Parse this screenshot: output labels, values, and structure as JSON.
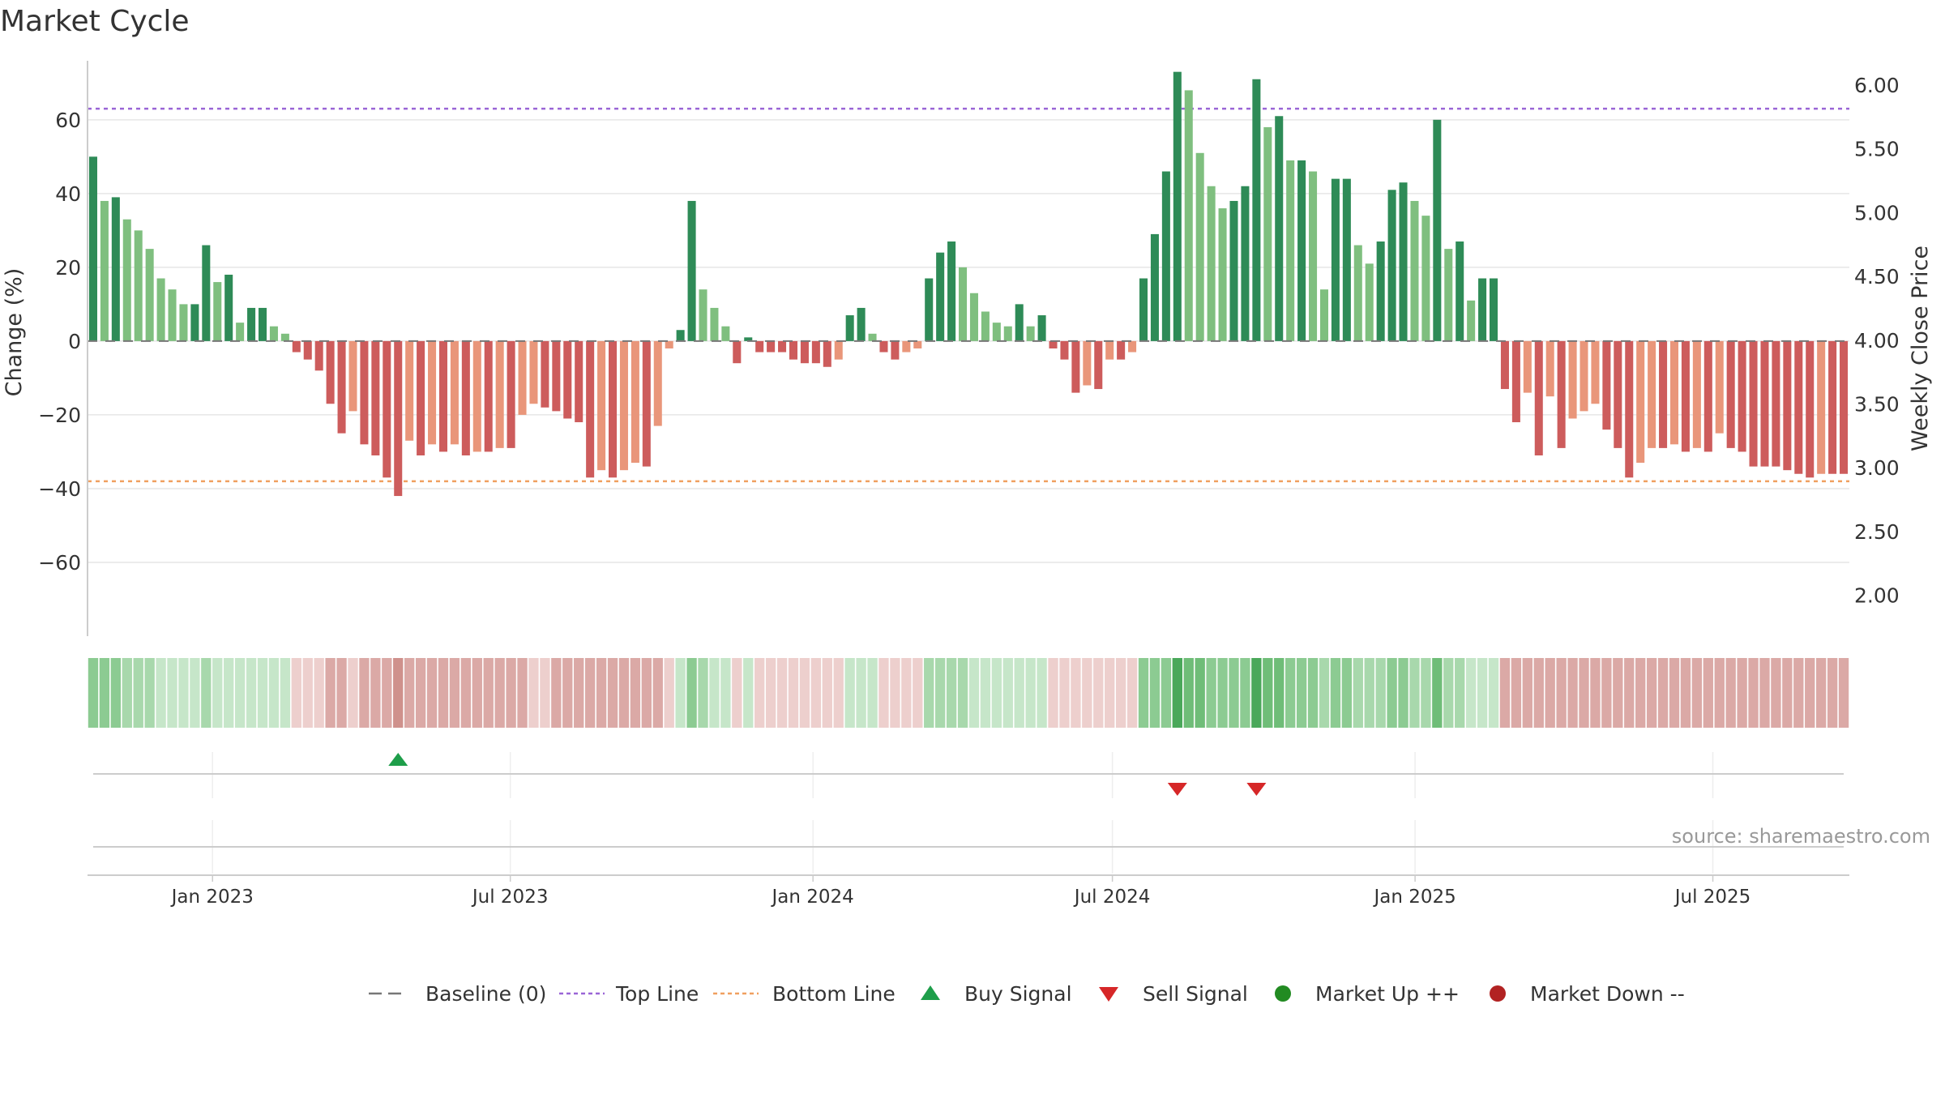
{
  "chart_data": {
    "type": "bar",
    "title": "Market Cycle",
    "ylabel_left": "Change (%)",
    "ylabel_right": "Weekly Close Price",
    "y_left_range": [
      -80,
      76
    ],
    "y_left_ticks": [
      "60",
      "40",
      "20",
      "0",
      "−20",
      "−40",
      "−60"
    ],
    "y_left_tick_values": [
      60,
      40,
      20,
      0,
      -20,
      -40,
      -60
    ],
    "y_right_range": [
      1.68,
      6.19
    ],
    "y_right_ticks": [
      "6.00",
      "5.50",
      "5.00",
      "4.50",
      "4.00",
      "3.50",
      "3.00",
      "2.50",
      "2.00"
    ],
    "y_right_tick_values": [
      6.0,
      5.5,
      5.0,
      4.5,
      4.0,
      3.5,
      3.0,
      2.5,
      2.0
    ],
    "x_start": "2022-10-17",
    "x_end": "2025-09-22",
    "x_ticks": [
      "Jan 2023",
      "Jul 2023",
      "Jan 2024",
      "Jul 2024",
      "Jan 2025",
      "Jul 2025"
    ],
    "x_tick_dates": [
      "2023-01-01",
      "2023-07-01",
      "2024-01-01",
      "2024-07-01",
      "2025-01-01",
      "2025-07-01"
    ],
    "top_line": 63,
    "bottom_line": -38,
    "grid": true,
    "colors": {
      "up_strong": "#2e8b57",
      "up_weak": "#7fbf7f",
      "down_strong": "#cd5c5c",
      "down_weak": "#e9967a",
      "top_line": "#9a65d6",
      "bottom_line": "#f0a060",
      "buy": "#1e9e4a",
      "sell": "#d62728",
      "market_up": "#228b22",
      "market_down": "#b22222",
      "baseline": "#777777"
    },
    "changes": [
      50,
      38,
      39,
      33,
      30,
      25,
      17,
      14,
      10,
      10,
      26,
      16,
      18,
      5,
      9,
      9,
      4,
      2,
      -3,
      -5,
      -8,
      -17,
      -25,
      -19,
      -28,
      -31,
      -37,
      -42,
      -27,
      -31,
      -28,
      -30,
      -28,
      -31,
      -30,
      -30,
      -29,
      -29,
      -20,
      -17,
      -18,
      -19,
      -21,
      -22,
      -37,
      -35,
      -37,
      -35,
      -33,
      -34,
      -23,
      -2,
      3,
      38,
      14,
      9,
      4,
      -6,
      1,
      -3,
      -3,
      -3,
      -5,
      -6,
      -6,
      -7,
      -5,
      7,
      9,
      2,
      -3,
      -5,
      -3,
      -2,
      17,
      24,
      27,
      20,
      13,
      8,
      5,
      4,
      10,
      4,
      7,
      -2,
      -5,
      -14,
      -12,
      -13,
      -5,
      -5,
      -3,
      17,
      29,
      46,
      73,
      68,
      51,
      42,
      36,
      38,
      42,
      71,
      58,
      61,
      49,
      49,
      46,
      14,
      44,
      44,
      26,
      21,
      27,
      41,
      43,
      38,
      34,
      60,
      25,
      27,
      11,
      17,
      17,
      -13,
      -22,
      -14,
      -31,
      -15,
      -29,
      -21,
      -19,
      -17,
      -24,
      -29,
      -37,
      -33,
      -29,
      -29,
      -28,
      -30,
      -29,
      -30,
      -25,
      -29,
      -30,
      -34,
      -34,
      -34,
      -35,
      -36,
      -37,
      -36,
      -36,
      -36
    ],
    "heat_levels": [
      3,
      3,
      3,
      2,
      2,
      2,
      1,
      1,
      1,
      1,
      2,
      1,
      1,
      1,
      1,
      1,
      1,
      1,
      -1,
      -1,
      -1,
      -2,
      -2,
      -1,
      -2,
      -2,
      -2,
      -3,
      -2,
      -2,
      -2,
      -2,
      -2,
      -2,
      -2,
      -2,
      -2,
      -2,
      -2,
      -1,
      -1,
      -2,
      -2,
      -2,
      -2,
      -2,
      -2,
      -2,
      -2,
      -2,
      -2,
      -1,
      1,
      3,
      2,
      1,
      1,
      -1,
      1,
      -1,
      -1,
      -1,
      -1,
      -1,
      -1,
      -1,
      -1,
      1,
      1,
      1,
      -1,
      -1,
      -1,
      -1,
      2,
      2,
      2,
      2,
      1,
      1,
      1,
      1,
      1,
      1,
      1,
      -1,
      -1,
      -1,
      -1,
      -1,
      -1,
      -1,
      -1,
      3,
      3,
      3,
      5,
      4,
      4,
      3,
      3,
      3,
      3,
      5,
      4,
      4,
      3,
      3,
      3,
      2,
      3,
      3,
      2,
      2,
      2,
      3,
      3,
      2,
      2,
      4,
      2,
      2,
      1,
      1,
      1,
      -2,
      -2,
      -2,
      -2,
      -2,
      -2,
      -2,
      -2,
      -2,
      -2,
      -2,
      -2,
      -2,
      -2,
      -2,
      -2,
      -2,
      -2,
      -2,
      -2,
      -2,
      -2,
      -2,
      -2,
      -2,
      -2,
      -2,
      -2,
      -2,
      -2,
      -2
    ],
    "buy_signals": [
      27
    ],
    "sell_signals": [
      96,
      103
    ],
    "legend": [
      {
        "label": "Baseline (0)",
        "kind": "dash"
      },
      {
        "label": "Top Line",
        "kind": "dot-purple"
      },
      {
        "label": "Bottom Line",
        "kind": "dot-orange"
      },
      {
        "label": "Buy Signal",
        "kind": "tri-up"
      },
      {
        "label": "Sell Signal",
        "kind": "tri-down"
      },
      {
        "label": "Market Up ++",
        "kind": "circle-green"
      },
      {
        "label": "Market Down --",
        "kind": "circle-red"
      }
    ],
    "source": "source: sharemaestro.com"
  }
}
